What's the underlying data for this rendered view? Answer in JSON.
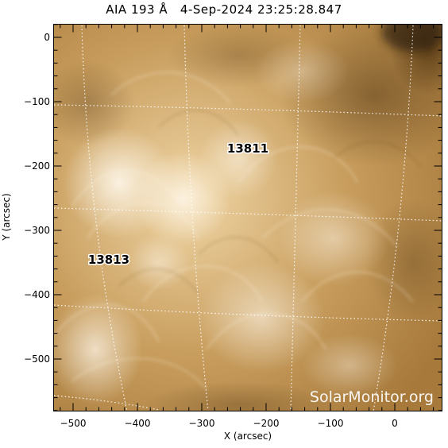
{
  "title": "AIA 193 Å   4-Sep-2024 23:25:28.847",
  "axes": {
    "xlabel": "X (arcsec)",
    "ylabel": "Y (arcsec)",
    "xticks": [
      "−500",
      "−400",
      "−300",
      "−200",
      "−100",
      "0"
    ],
    "yticks": [
      "0",
      "−100",
      "−200",
      "−300",
      "−400",
      "−500"
    ]
  },
  "regions": [
    {
      "id": "13811"
    },
    {
      "id": "13813"
    }
  ],
  "watermark": "SolarMonitor.org",
  "colors": {
    "frame": "#000000",
    "grid": "#ffffff",
    "solar_dark": "#6b4a1c",
    "solar_mid": "#b58a4a",
    "solar_light": "#f2dcb3",
    "solar_bright": "#fff7ea"
  }
}
